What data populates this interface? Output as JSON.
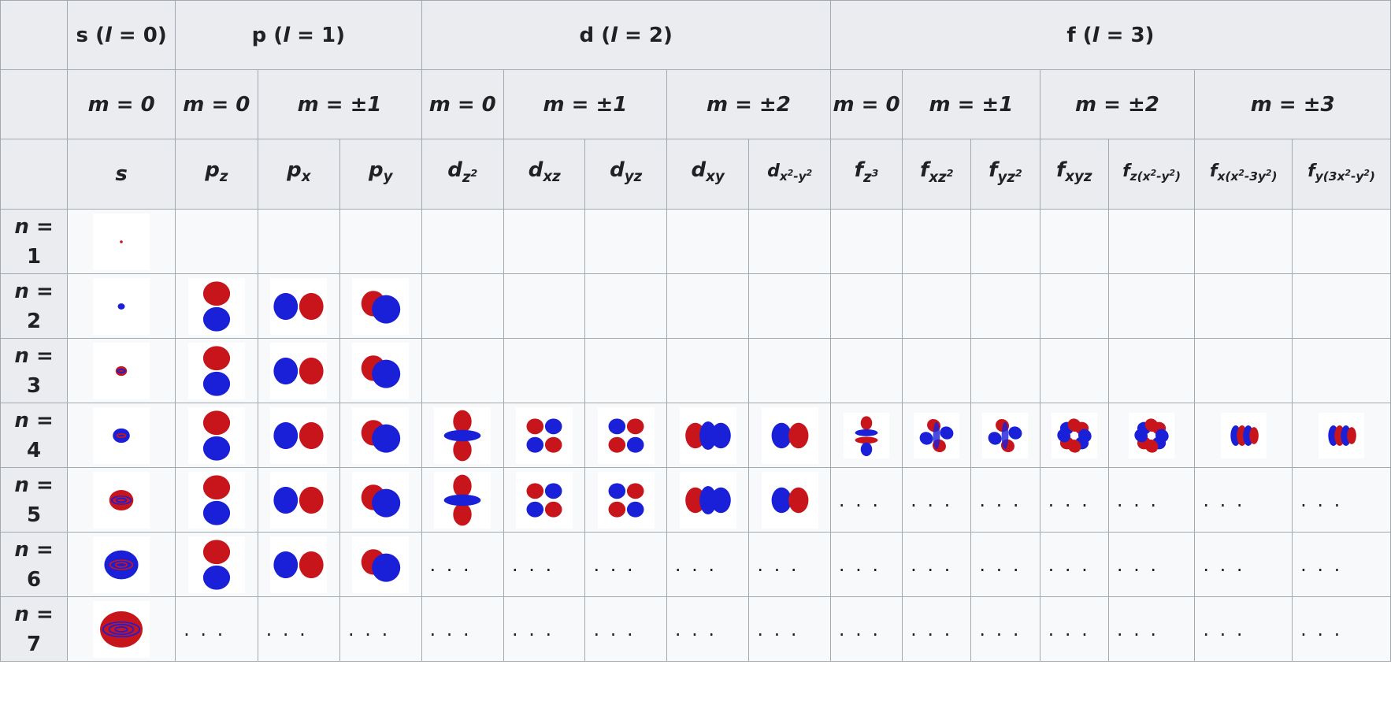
{
  "groups": [
    {
      "label": "s",
      "l": "l",
      "eq": " = 0)"
    },
    {
      "label": "p",
      "l": "l",
      "eq": " = 1)"
    },
    {
      "label": "d",
      "l": "l",
      "eq": " = 2)"
    },
    {
      "label": "f",
      "l": "l",
      "eq": " = 3)"
    }
  ],
  "m_headers": [
    "m = 0",
    "m = 0",
    "m = ±1",
    "m = 0",
    "m = ±1",
    "m = ±2",
    "m = 0",
    "m = ±1",
    "m = ±2",
    "m = ±3"
  ],
  "orbitals": [
    "s",
    "pz",
    "px",
    "py",
    "dz2",
    "dxz",
    "dyz",
    "dxy",
    "dx2-y2",
    "fz3",
    "fxz2",
    "fyz2",
    "fxyz",
    "fz(x2-y2)",
    "fx(x2-3y2)",
    "fy(3x2-y2)"
  ],
  "rows": [
    {
      "n": "n = 1",
      "label": "n =",
      "num": "1"
    },
    {
      "n": "n = 2",
      "label": "n =",
      "num": "2"
    },
    {
      "n": "n = 3",
      "label": "n =",
      "num": "3"
    },
    {
      "n": "n = 4",
      "label": "n =",
      "num": "4"
    },
    {
      "n": "n = 5",
      "label": "n =",
      "num": "5"
    },
    {
      "n": "n = 6",
      "label": "n =",
      "num": "6"
    },
    {
      "n": "n = 7",
      "label": "n =",
      "num": "7"
    }
  ],
  "ellipsis": ". . .",
  "colors": {
    "lobe_red": "#c8151b",
    "lobe_blue": "#1a1fd8",
    "header_bg": "#eaecf0",
    "cell_bg": "#f8f9fa",
    "border": "#a2a9b1"
  }
}
